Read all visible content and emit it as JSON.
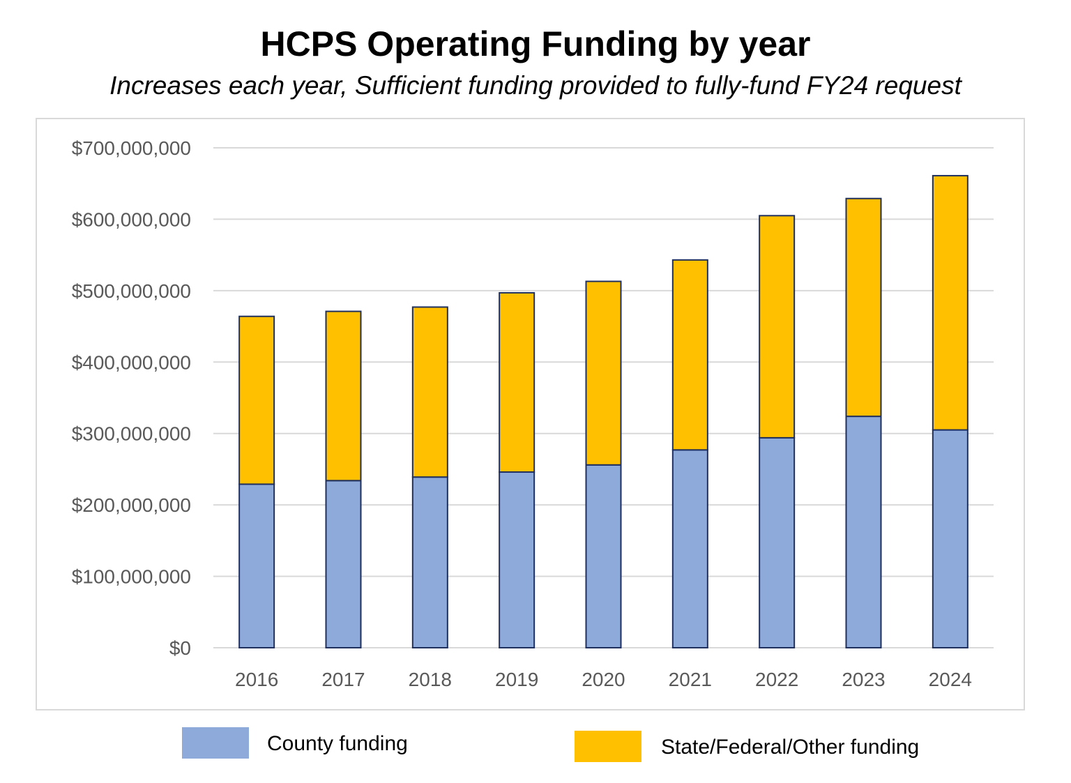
{
  "title": "HCPS Operating Funding by year",
  "subtitle": "Increases each year, Sufficient funding provided to fully-fund FY24 request",
  "colors": {
    "county": "#8eaadb",
    "state": "#ffc000",
    "bar_outline": "#1f2f5e",
    "grid": "#d9d9d9",
    "tick_text": "#595959"
  },
  "legend": {
    "county_label": "County funding",
    "state_label": "State/Federal/Other funding"
  },
  "chart_data": {
    "type": "bar",
    "stacked": true,
    "title": "HCPS Operating Funding by year",
    "subtitle": "Increases each year, Sufficient funding provided to fully-fund FY24 request",
    "xlabel": "",
    "ylabel": "",
    "categories": [
      "2016",
      "2017",
      "2018",
      "2019",
      "2020",
      "2021",
      "2022",
      "2023",
      "2024"
    ],
    "series": [
      {
        "name": "County funding",
        "color": "#8eaadb",
        "values": [
          229000000,
          234000000,
          239000000,
          246000000,
          256000000,
          277000000,
          294000000,
          324000000,
          305000000
        ]
      },
      {
        "name": "State/Federal/Other funding",
        "color": "#ffc000",
        "values": [
          235000000,
          237000000,
          238000000,
          251000000,
          257000000,
          266000000,
          311000000,
          305000000,
          356000000
        ]
      }
    ],
    "ylim": [
      0,
      700000000
    ],
    "yticks": [
      "$0",
      "$100,000,000",
      "$200,000,000",
      "$300,000,000",
      "$400,000,000",
      "$500,000,000",
      "$600,000,000",
      "$700,000,000"
    ],
    "ytick_values": [
      0,
      100000000,
      200000000,
      300000000,
      400000000,
      500000000,
      600000000,
      700000000
    ],
    "grid": true,
    "legend_position": "bottom"
  }
}
